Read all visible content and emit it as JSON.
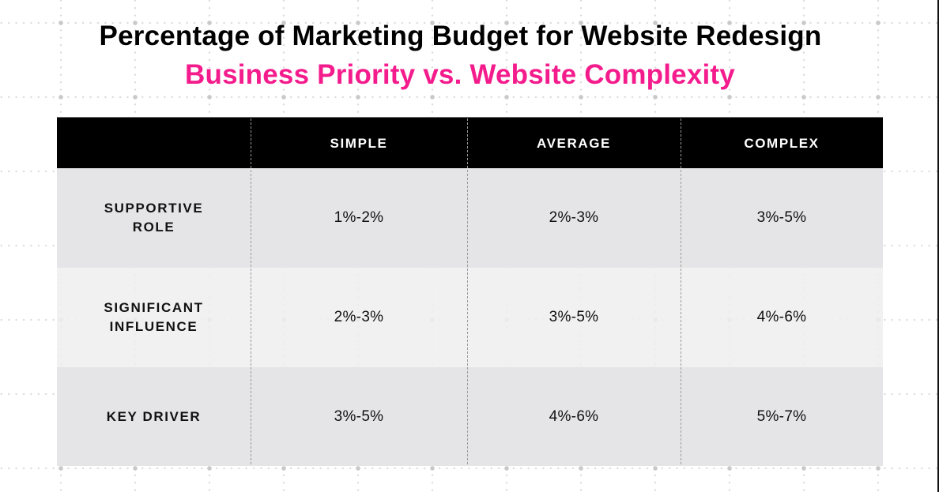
{
  "header": {
    "title": "Percentage of Marketing Budget for Website Redesign",
    "subtitle": "Business Priority vs. Website Complexity"
  },
  "colors": {
    "title": "#000000",
    "subtitle": "#F41C8C",
    "table_header_bg": "#000000",
    "row_bg": "#E5E5E7",
    "row_alt_bg": "#F0F0F1"
  },
  "table": {
    "columns": [
      "",
      "SIMPLE",
      "AVERAGE",
      "COMPLEX"
    ],
    "rows": [
      {
        "label": "SUPPORTIVE\nROLE",
        "values": [
          "1%-2%",
          "2%-3%",
          "3%-5%"
        ]
      },
      {
        "label": "SIGNIFICANT\nINFLUENCE",
        "values": [
          "2%-3%",
          "3%-5%",
          "4%-6%"
        ]
      },
      {
        "label": "KEY DRIVER",
        "values": [
          "3%-5%",
          "4%-6%",
          "5%-7%"
        ]
      }
    ]
  },
  "chart_data": {
    "type": "table",
    "title": "Percentage of Marketing Budget for Website Redesign",
    "subtitle": "Business Priority vs. Website Complexity",
    "row_axis": "Business Priority",
    "column_axis": "Website Complexity",
    "columns": [
      "Simple",
      "Average",
      "Complex"
    ],
    "rows": [
      "Supportive Role",
      "Significant Influence",
      "Key Driver"
    ],
    "values": [
      [
        "1%-2%",
        "2%-3%",
        "3%-5%"
      ],
      [
        "2%-3%",
        "3%-5%",
        "4%-6%"
      ],
      [
        "3%-5%",
        "4%-6%",
        "5%-7%"
      ]
    ],
    "ranges_pct": [
      [
        [
          1,
          2
        ],
        [
          2,
          3
        ],
        [
          3,
          5
        ]
      ],
      [
        [
          2,
          3
        ],
        [
          3,
          5
        ],
        [
          4,
          6
        ]
      ],
      [
        [
          3,
          5
        ],
        [
          4,
          6
        ],
        [
          5,
          7
        ]
      ]
    ]
  }
}
